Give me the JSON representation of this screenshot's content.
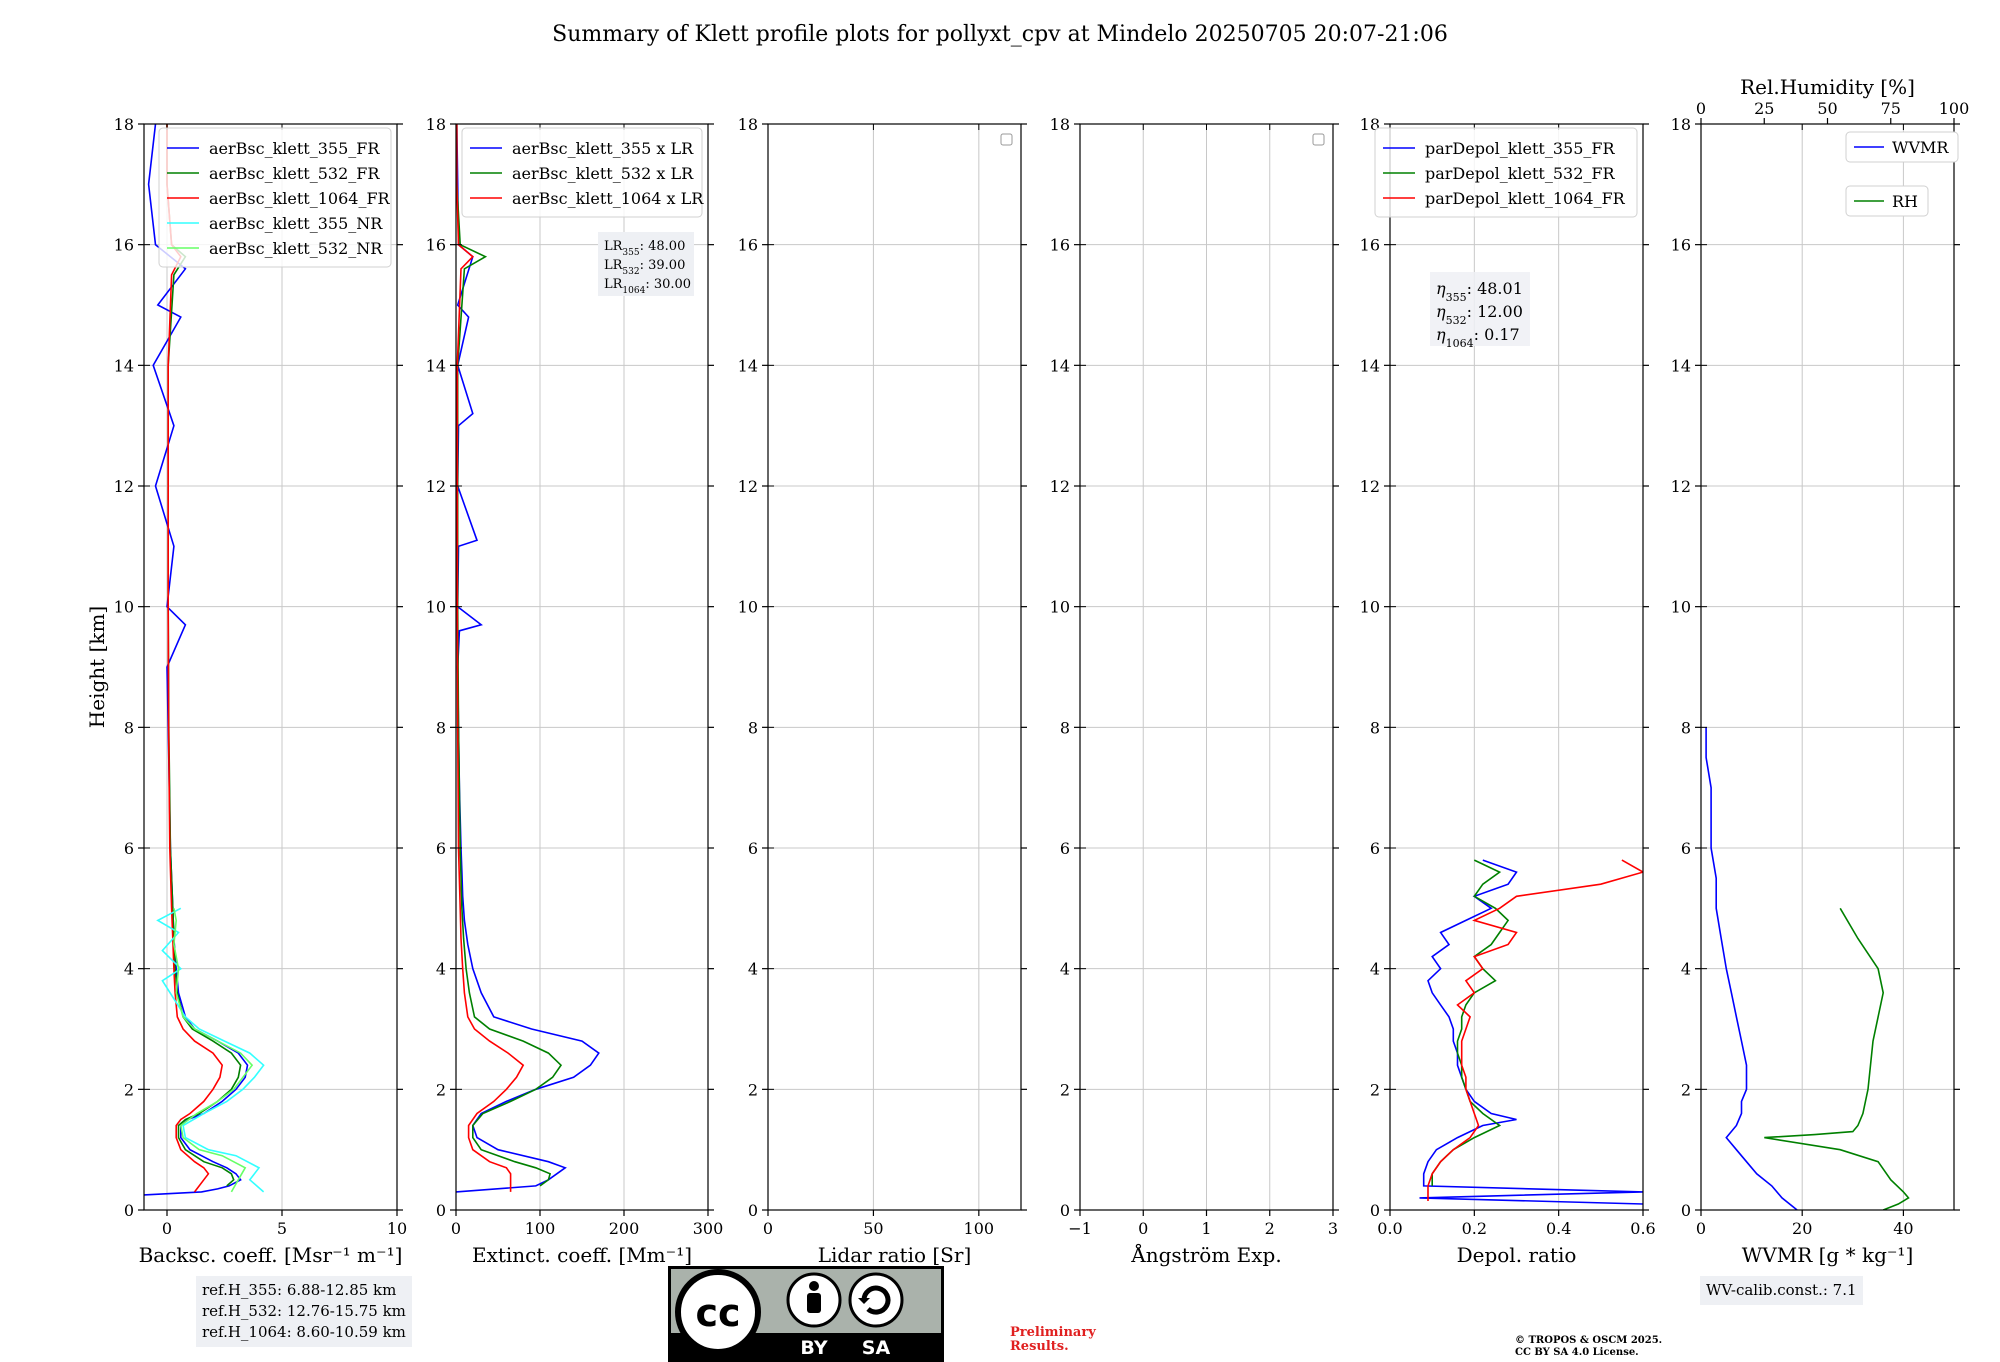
{
  "title": "Summary of Klett profile plots for pollyxt_cpv at Mindelo 20250705 20:07-21:06",
  "colors": {
    "c355": "#0000ff",
    "c532": "#008000",
    "c1064": "#ff0000",
    "c355nr": "#33ffff",
    "c532nr": "#66ff66",
    "grid": "#c8c8c8"
  },
  "chart_data": [
    {
      "id": "bsc",
      "type": "line",
      "xlabel": "Backsc. coeff. [Msr⁻¹ m⁻¹]",
      "ylabel": "Height [km]",
      "xlim": [
        -1,
        10
      ],
      "xticks": [
        0,
        5,
        10
      ],
      "ylim": [
        0,
        18
      ],
      "legend": "upper-right",
      "series": [
        {
          "name": "aerBsc_klett_355_FR",
          "color": "#0000ff",
          "y": [
            0.25,
            0.3,
            0.35,
            0.4,
            0.5,
            0.6,
            0.7,
            0.8,
            1.0,
            1.2,
            1.4,
            1.5,
            1.6,
            1.8,
            2.0,
            2.2,
            2.4,
            2.6,
            2.8,
            3.0,
            3.2,
            3.6,
            4.0,
            4.5,
            5.0,
            5.5,
            6.0,
            7.0,
            8.0,
            9.0,
            9.7,
            10.0,
            11.0,
            12.0,
            13.0,
            14.0,
            14.8,
            15.0,
            15.6,
            16.0,
            17.0,
            18.0
          ],
          "x": [
            -1,
            1.5,
            2.2,
            2.7,
            3.2,
            3.0,
            2.6,
            2.0,
            1.0,
            0.6,
            0.6,
            0.9,
            1.6,
            2.4,
            3.0,
            3.4,
            3.5,
            3.1,
            2.2,
            1.2,
            0.8,
            0.5,
            0.4,
            0.3,
            0.25,
            0.2,
            0.15,
            0.1,
            0.05,
            0.0,
            0.8,
            0.0,
            0.3,
            -0.5,
            0.3,
            -0.6,
            0.6,
            -0.4,
            0.8,
            -0.5,
            -0.8,
            -0.5
          ]
        },
        {
          "name": "aerBsc_klett_532_FR",
          "color": "#008000",
          "y": [
            0.4,
            0.5,
            0.6,
            0.7,
            0.8,
            1.0,
            1.2,
            1.4,
            1.5,
            1.6,
            1.8,
            2.0,
            2.2,
            2.4,
            2.6,
            2.8,
            3.0,
            3.2,
            3.6,
            4.0,
            4.5,
            5.0,
            6.0,
            8.0,
            10.0,
            12.0,
            14.0,
            15.5,
            15.8,
            16.0,
            17.0,
            18.0
          ],
          "x": [
            2.6,
            2.9,
            2.8,
            2.4,
            1.6,
            0.8,
            0.5,
            0.5,
            0.8,
            1.4,
            2.2,
            2.8,
            3.1,
            3.2,
            2.8,
            2.0,
            1.1,
            0.7,
            0.45,
            0.35,
            0.3,
            0.25,
            0.15,
            0.08,
            0.05,
            0.05,
            0.05,
            0.3,
            0.8,
            0.2,
            0.0,
            0.0
          ]
        },
        {
          "name": "aerBsc_klett_1064_FR",
          "color": "#ff0000",
          "y": [
            0.3,
            0.5,
            0.6,
            0.7,
            0.8,
            1.0,
            1.2,
            1.4,
            1.5,
            1.6,
            1.8,
            2.0,
            2.2,
            2.4,
            2.6,
            2.8,
            3.0,
            3.2,
            3.6,
            4.0,
            4.5,
            5.0,
            6.0,
            8.0,
            10.0,
            12.0,
            14.0,
            15.5,
            15.8,
            16.0,
            17.0,
            18.0
          ],
          "x": [
            1.2,
            1.6,
            1.8,
            1.6,
            1.2,
            0.6,
            0.4,
            0.4,
            0.6,
            1.0,
            1.6,
            2.0,
            2.3,
            2.4,
            2.0,
            1.2,
            0.7,
            0.45,
            0.35,
            0.3,
            0.25,
            0.2,
            0.12,
            0.07,
            0.05,
            0.05,
            0.05,
            0.2,
            0.6,
            0.2,
            0.0,
            0.0
          ]
        },
        {
          "name": "aerBsc_klett_355_NR",
          "color": "#33ffff",
          "y": [
            0.3,
            0.5,
            0.7,
            0.9,
            1.0,
            1.2,
            1.4,
            1.6,
            1.8,
            2.0,
            2.2,
            2.4,
            2.6,
            2.8,
            3.0,
            3.2,
            3.5,
            3.8,
            4.0,
            4.3,
            4.6,
            4.8,
            5.0
          ],
          "x": [
            4.2,
            3.6,
            4.0,
            3.0,
            1.8,
            0.8,
            0.7,
            1.6,
            2.6,
            3.3,
            3.8,
            4.2,
            3.6,
            2.5,
            1.4,
            0.8,
            0.3,
            -0.2,
            0.6,
            -0.2,
            0.5,
            -0.4,
            0.6
          ]
        },
        {
          "name": "aerBsc_klett_532_NR",
          "color": "#66ff66",
          "y": [
            0.3,
            0.5,
            0.7,
            0.9,
            1.0,
            1.2,
            1.4,
            1.6,
            1.8,
            2.0,
            2.2,
            2.4,
            2.6,
            2.8,
            3.0,
            3.2,
            3.6,
            4.0,
            4.4,
            4.8,
            5.0
          ],
          "x": [
            2.8,
            3.1,
            3.4,
            2.4,
            1.4,
            0.7,
            0.6,
            1.3,
            2.2,
            2.9,
            3.3,
            3.7,
            3.2,
            2.2,
            1.2,
            0.7,
            0.4,
            0.5,
            0.3,
            0.4,
            0.3
          ]
        }
      ]
    },
    {
      "id": "ext",
      "type": "line",
      "xlabel": "Extinct. coeff. [Mm⁻¹]",
      "xlim": [
        0,
        300
      ],
      "xticks": [
        0,
        100,
        200,
        300
      ],
      "ylim": [
        0,
        18
      ],
      "legend": "upper-right",
      "lr_labels": [
        {
          "sub": "355",
          "value": "48.00"
        },
        {
          "sub": "532",
          "value": "39.00"
        },
        {
          "sub": "1064",
          "value": "30.00"
        }
      ],
      "series": [
        {
          "name": "aerBsc_klett_355 x LR",
          "color": "#0000ff",
          "y": [
            0.3,
            0.4,
            0.5,
            0.6,
            0.7,
            0.8,
            1.0,
            1.2,
            1.4,
            1.6,
            1.8,
            2.0,
            2.2,
            2.4,
            2.6,
            2.8,
            3.0,
            3.2,
            3.6,
            4.0,
            4.4,
            4.8,
            5.2,
            5.6,
            6.0,
            7.0,
            8.0,
            9.0,
            9.6,
            9.7,
            10.0,
            11.0,
            11.1,
            12.0,
            13.0,
            13.2,
            14.0,
            14.8,
            15.0,
            15.8,
            16.0,
            17.0,
            18.0
          ],
          "x": [
            0,
            95,
            110,
            120,
            130,
            110,
            50,
            25,
            20,
            30,
            60,
            95,
            140,
            160,
            170,
            150,
            90,
            45,
            30,
            20,
            14,
            10,
            8,
            7,
            6,
            4,
            3,
            2,
            4,
            30,
            2,
            3,
            25,
            2,
            3,
            20,
            2,
            15,
            2,
            20,
            3,
            2,
            1
          ]
        },
        {
          "name": "aerBsc_klett_532 x LR",
          "color": "#008000",
          "y": [
            0.4,
            0.5,
            0.6,
            0.7,
            0.8,
            1.0,
            1.2,
            1.4,
            1.6,
            1.8,
            2.0,
            2.2,
            2.4,
            2.6,
            2.8,
            3.0,
            3.2,
            3.6,
            4.0,
            4.5,
            5.0,
            6.0,
            8.0,
            10.0,
            12.0,
            14.0,
            15.6,
            15.8,
            16.0,
            17.0,
            18.0
          ],
          "x": [
            100,
            110,
            112,
            95,
            70,
            30,
            20,
            20,
            32,
            65,
            95,
            115,
            125,
            110,
            80,
            40,
            22,
            16,
            12,
            9,
            7,
            5,
            3,
            2,
            2,
            2,
            10,
            35,
            5,
            1,
            1
          ]
        },
        {
          "name": "aerBsc_klett_1064 x LR",
          "color": "#ff0000",
          "y": [
            0.3,
            0.5,
            0.6,
            0.7,
            0.8,
            1.0,
            1.2,
            1.4,
            1.6,
            1.8,
            2.0,
            2.2,
            2.4,
            2.6,
            2.8,
            3.0,
            3.2,
            3.6,
            4.0,
            4.5,
            5.0,
            6.0,
            8.0,
            10.0,
            12.0,
            14.0,
            15.6,
            15.8,
            16.0,
            17.0,
            18.0
          ],
          "x": [
            65,
            65,
            65,
            60,
            40,
            20,
            15,
            15,
            25,
            45,
            60,
            72,
            80,
            62,
            40,
            22,
            14,
            10,
            8,
            6,
            5,
            3,
            2,
            1.5,
            1.5,
            1.5,
            6,
            20,
            3,
            1,
            1
          ]
        }
      ]
    },
    {
      "id": "lr",
      "type": "line",
      "xlabel": "Lidar ratio [Sr]",
      "xlim": [
        0,
        120
      ],
      "xticks": [
        0,
        50,
        100
      ],
      "ylim": [
        0,
        18
      ],
      "series": []
    },
    {
      "id": "ang",
      "type": "line",
      "xlabel": "Ångström Exp.",
      "xlim": [
        -1,
        3
      ],
      "xticks": [
        -1,
        0,
        1,
        2,
        3
      ],
      "ylim": [
        0,
        18
      ],
      "series": []
    },
    {
      "id": "depol",
      "type": "line",
      "xlabel": "Depol. ratio",
      "xlim": [
        0,
        0.6
      ],
      "xticks": [
        0.0,
        0.2,
        0.4,
        0.6
      ],
      "ylim": [
        0,
        18
      ],
      "legend": "upper-right",
      "eta_labels": [
        {
          "sub": "355",
          "value": "48.01"
        },
        {
          "sub": "532",
          "value": "12.00"
        },
        {
          "sub": "1064",
          "value": "0.17"
        }
      ],
      "series": [
        {
          "name": "parDepol_klett_355_FR",
          "color": "#0000ff",
          "y": [
            0.1,
            0.2,
            0.3,
            0.4,
            0.6,
            0.8,
            1.0,
            1.2,
            1.4,
            1.5,
            1.6,
            1.8,
            2.0,
            2.2,
            2.4,
            2.6,
            2.8,
            3.0,
            3.2,
            3.4,
            3.6,
            3.8,
            4.0,
            4.2,
            4.4,
            4.6,
            4.8,
            5.0,
            5.2,
            5.4,
            5.6,
            5.8
          ],
          "x": [
            0.6,
            0.07,
            0.6,
            0.08,
            0.08,
            0.09,
            0.11,
            0.16,
            0.22,
            0.3,
            0.24,
            0.2,
            0.18,
            0.17,
            0.16,
            0.16,
            0.15,
            0.15,
            0.14,
            0.12,
            0.1,
            0.09,
            0.12,
            0.1,
            0.14,
            0.12,
            0.18,
            0.24,
            0.2,
            0.28,
            0.3,
            0.22
          ]
        },
        {
          "name": "parDepol_klett_532_FR",
          "color": "#008000",
          "y": [
            0.4,
            0.6,
            0.8,
            1.0,
            1.2,
            1.4,
            1.6,
            1.8,
            2.0,
            2.2,
            2.4,
            2.6,
            2.8,
            3.0,
            3.2,
            3.4,
            3.6,
            3.8,
            4.0,
            4.2,
            4.4,
            4.6,
            4.8,
            5.0,
            5.2,
            5.4,
            5.6,
            5.8
          ],
          "x": [
            0.1,
            0.1,
            0.12,
            0.15,
            0.2,
            0.26,
            0.22,
            0.19,
            0.18,
            0.17,
            0.17,
            0.16,
            0.16,
            0.17,
            0.17,
            0.18,
            0.2,
            0.25,
            0.22,
            0.2,
            0.24,
            0.26,
            0.28,
            0.25,
            0.2,
            0.22,
            0.26,
            0.2
          ]
        },
        {
          "name": "parDepol_klett_1064_FR",
          "color": "#ff0000",
          "y": [
            0.15,
            0.4,
            0.6,
            0.8,
            1.0,
            1.2,
            1.4,
            1.6,
            1.8,
            2.0,
            2.2,
            2.4,
            2.6,
            2.8,
            3.0,
            3.2,
            3.4,
            3.6,
            3.8,
            4.0,
            4.2,
            4.4,
            4.6,
            4.8,
            5.0,
            5.2,
            5.4,
            5.6,
            5.8
          ],
          "x": [
            0.09,
            0.09,
            0.1,
            0.12,
            0.15,
            0.19,
            0.21,
            0.2,
            0.19,
            0.18,
            0.18,
            0.17,
            0.17,
            0.17,
            0.18,
            0.19,
            0.16,
            0.2,
            0.18,
            0.22,
            0.2,
            0.28,
            0.3,
            0.2,
            0.26,
            0.3,
            0.5,
            0.6,
            0.55
          ]
        }
      ]
    },
    {
      "id": "wv",
      "type": "line",
      "xlabel": "WVMR [g * kg⁻¹]",
      "x2label": "Rel.Humidity [%]",
      "xlim": [
        0,
        50
      ],
      "xticks": [
        0,
        20,
        40
      ],
      "x2lim": [
        0,
        100
      ],
      "x2ticks": [
        0,
        25,
        50,
        75,
        100
      ],
      "ylim": [
        0,
        18
      ],
      "series": [
        {
          "name": "WVMR",
          "color": "#0000ff",
          "y": [
            0.0,
            0.2,
            0.4,
            0.6,
            0.8,
            1.0,
            1.2,
            1.4,
            1.6,
            1.8,
            2.0,
            2.4,
            2.8,
            3.2,
            3.6,
            4.0,
            4.5,
            5.0,
            5.5,
            6.0,
            6.5,
            7.0,
            7.5,
            8.0
          ],
          "x": [
            19,
            16,
            14,
            11,
            9,
            7,
            5,
            7,
            8,
            8,
            9,
            9,
            8,
            7,
            6,
            5,
            4,
            3,
            3,
            2,
            2,
            2,
            1,
            1
          ]
        },
        {
          "name": "RH",
          "color": "#008000",
          "y": [
            0.0,
            0.1,
            0.2,
            0.3,
            0.5,
            0.8,
            1.0,
            1.2,
            1.25,
            1.3,
            1.4,
            1.6,
            2.0,
            2.4,
            2.8,
            3.2,
            3.6,
            4.0,
            4.5,
            5.0
          ],
          "x": [
            72,
            78,
            82,
            80,
            75,
            70,
            55,
            25,
            45,
            60,
            62,
            64,
            66,
            67,
            68,
            70,
            72,
            70,
            62,
            55
          ]
        }
      ]
    }
  ],
  "info": {
    "ref_h_355": "ref.H_355: 6.88-12.85 km",
    "ref_h_532": "ref.H_532: 12.76-15.75 km",
    "ref_h_1064": "ref.H_1064: 8.60-10.59 km",
    "wv_calib": "WV-calib.const.: 7.1",
    "preliminary_1": "Preliminary",
    "preliminary_2": "Results.",
    "copyright_1": "© TROPOS & OSCM 2025.",
    "copyright_2": "CC BY SA 4.0 License.",
    "cc_by": "BY",
    "cc_sa": "SA",
    "cc_logo": "cc"
  }
}
